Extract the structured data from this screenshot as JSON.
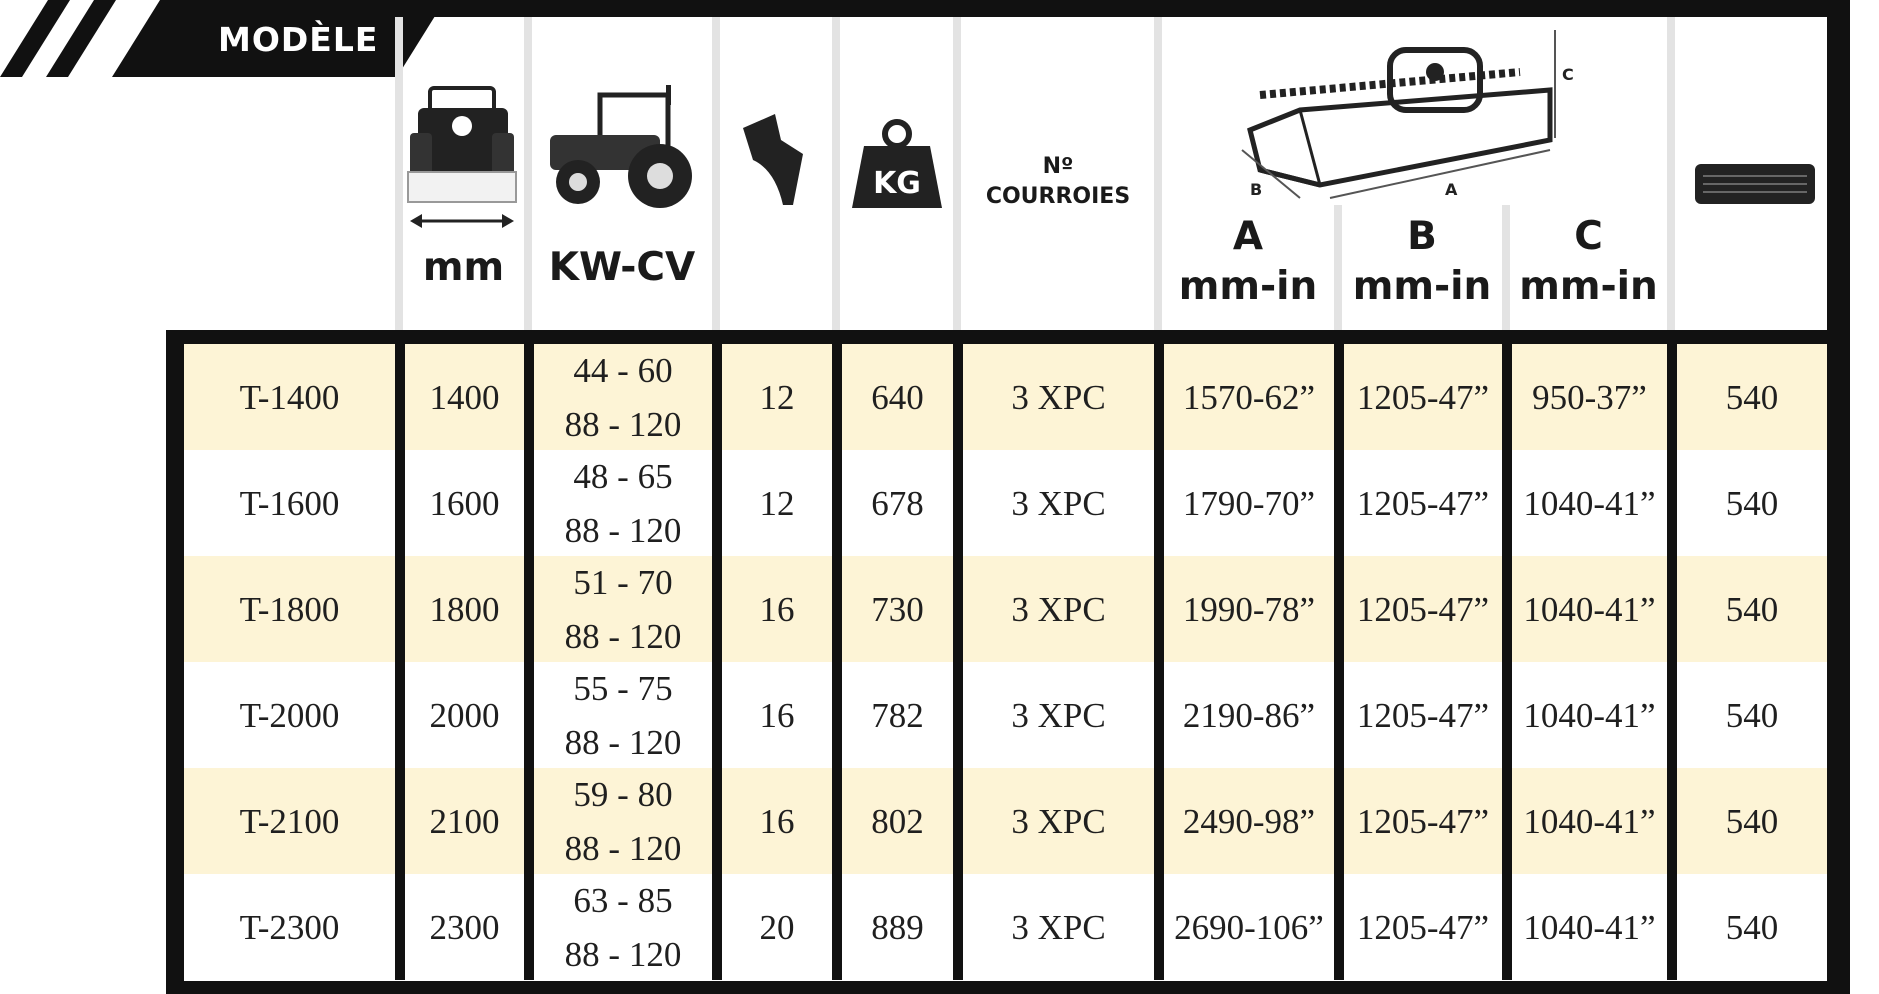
{
  "header": {
    "model_label": "MODÈLE",
    "width_unit": "mm",
    "power_unit": "KW-CV",
    "weight_badge": "KG",
    "belts_label_line1": "Nº",
    "belts_label_line2": "COURROIES",
    "dim_a_letter": "A",
    "dim_b_letter": "B",
    "dim_c_letter": "C",
    "dim_unit": "mm-in",
    "diagram_a": "A",
    "diagram_b": "B",
    "diagram_c": "C"
  },
  "icons": {
    "width": "tractor-rear-width-icon",
    "power": "tractor-icon",
    "blades": "flail-blade-icon",
    "weight": "weight-icon",
    "dimensions": "mower-dimensions-diagram",
    "pto": "pto-shaft-icon"
  },
  "colors": {
    "frame": "#111111",
    "row_highlight": "#fdf4d6",
    "header_divider": "#e3e3e3"
  },
  "rows": [
    {
      "model": "T-1400",
      "width": "1400",
      "kw": "44 - 60",
      "cv": "88 - 120",
      "blades": "12",
      "weight": "640",
      "belts": "3 XPC",
      "a": "1570-62”",
      "b": "1205-47”",
      "c": "950-37”",
      "pto": "540"
    },
    {
      "model": "T-1600",
      "width": "1600",
      "kw": "48 - 65",
      "cv": "88 - 120",
      "blades": "12",
      "weight": "678",
      "belts": "3 XPC",
      "a": "1790-70”",
      "b": "1205-47”",
      "c": "1040-41”",
      "pto": "540"
    },
    {
      "model": "T-1800",
      "width": "1800",
      "kw": "51 - 70",
      "cv": "88 - 120",
      "blades": "16",
      "weight": "730",
      "belts": "3 XPC",
      "a": "1990-78”",
      "b": "1205-47”",
      "c": "1040-41”",
      "pto": "540"
    },
    {
      "model": "T-2000",
      "width": "2000",
      "kw": "55 - 75",
      "cv": "88 - 120",
      "blades": "16",
      "weight": "782",
      "belts": "3 XPC",
      "a": "2190-86”",
      "b": "1205-47”",
      "c": "1040-41”",
      "pto": "540"
    },
    {
      "model": "T-2100",
      "width": "2100",
      "kw": "59 - 80",
      "cv": "88 - 120",
      "blades": "16",
      "weight": "802",
      "belts": "3 XPC",
      "a": "2490-98”",
      "b": "1205-47”",
      "c": "1040-41”",
      "pto": "540"
    },
    {
      "model": "T-2300",
      "width": "2300",
      "kw": "63 - 85",
      "cv": "88 - 120",
      "blades": "20",
      "weight": "889",
      "belts": "3 XPC",
      "a": "2690-106”",
      "b": "1205-47”",
      "c": "1040-41”",
      "pto": "540"
    }
  ]
}
